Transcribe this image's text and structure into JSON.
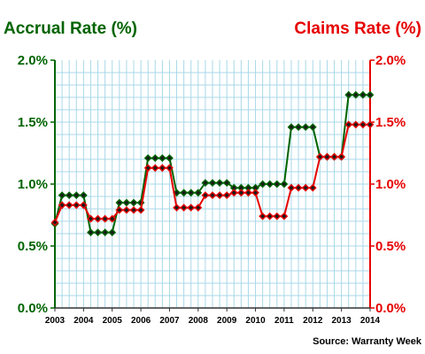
{
  "chart_data": {
    "type": "line",
    "title_left": "Accrual Rate (%)",
    "title_right": "Claims Rate (%)",
    "source": "Source: Warranty Week",
    "ylim": [
      0,
      2.0
    ],
    "xlim": [
      2003,
      2014
    ],
    "y_ticks_left": [
      "0.0%",
      "0.5%",
      "1.0%",
      "1.5%",
      "2.0%"
    ],
    "y_ticks_right": [
      "0.0%",
      "0.5%",
      "1.0%",
      "1.5%",
      "2.0%"
    ],
    "x_ticks": [
      "2003",
      "2004",
      "2005",
      "2006",
      "2007",
      "2008",
      "2009",
      "2010",
      "2011",
      "2012",
      "2013",
      "2014"
    ],
    "grid": true,
    "colors": {
      "accrual": "#006400",
      "claims": "#e60000",
      "grid": "#a8d8e8",
      "points": "#1a1a1a"
    },
    "series": [
      {
        "key": "accrual",
        "x": [
          2003.0,
          2003.25,
          2003.5,
          2003.75,
          2004.0,
          2004.25,
          2004.5,
          2004.75,
          2005.0,
          2005.25,
          2005.5,
          2005.75,
          2006.0,
          2006.25,
          2006.5,
          2006.75,
          2007.0,
          2007.25,
          2007.5,
          2007.75,
          2008.0,
          2008.25,
          2008.5,
          2008.75,
          2009.0,
          2009.25,
          2009.5,
          2009.75,
          2010.0,
          2010.25,
          2010.5,
          2010.75,
          2011.0,
          2011.25,
          2011.5,
          2011.75,
          2012.0,
          2012.25,
          2012.5,
          2012.75,
          2013.0,
          2013.25,
          2013.5,
          2013.75,
          2014.0
        ],
        "values": [
          0.68,
          0.91,
          0.91,
          0.91,
          0.91,
          0.61,
          0.61,
          0.61,
          0.61,
          0.85,
          0.85,
          0.85,
          0.85,
          1.21,
          1.21,
          1.21,
          1.21,
          0.93,
          0.93,
          0.93,
          0.93,
          1.01,
          1.01,
          1.01,
          1.01,
          0.97,
          0.97,
          0.97,
          0.97,
          1.0,
          1.0,
          1.0,
          1.0,
          1.46,
          1.46,
          1.46,
          1.46,
          1.22,
          1.22,
          1.22,
          1.22,
          1.72,
          1.72,
          1.72,
          1.72
        ]
      },
      {
        "key": "claims",
        "x": [
          2003.0,
          2003.25,
          2003.5,
          2003.75,
          2004.0,
          2004.25,
          2004.5,
          2004.75,
          2005.0,
          2005.25,
          2005.5,
          2005.75,
          2006.0,
          2006.25,
          2006.5,
          2006.75,
          2007.0,
          2007.25,
          2007.5,
          2007.75,
          2008.0,
          2008.25,
          2008.5,
          2008.75,
          2009.0,
          2009.25,
          2009.5,
          2009.75,
          2010.0,
          2010.25,
          2010.5,
          2010.75,
          2011.0,
          2011.25,
          2011.5,
          2011.75,
          2012.0,
          2012.25,
          2012.5,
          2012.75,
          2013.0,
          2013.25,
          2013.5,
          2013.75,
          2014.0
        ],
        "values": [
          0.69,
          0.83,
          0.83,
          0.83,
          0.83,
          0.72,
          0.72,
          0.72,
          0.72,
          0.79,
          0.79,
          0.79,
          0.79,
          1.13,
          1.13,
          1.13,
          1.13,
          0.81,
          0.81,
          0.81,
          0.81,
          0.91,
          0.91,
          0.91,
          0.91,
          0.93,
          0.93,
          0.93,
          0.93,
          0.74,
          0.74,
          0.74,
          0.74,
          0.97,
          0.97,
          0.97,
          0.97,
          1.22,
          1.22,
          1.22,
          1.22,
          1.48,
          1.48,
          1.48,
          1.48
        ]
      }
    ]
  }
}
